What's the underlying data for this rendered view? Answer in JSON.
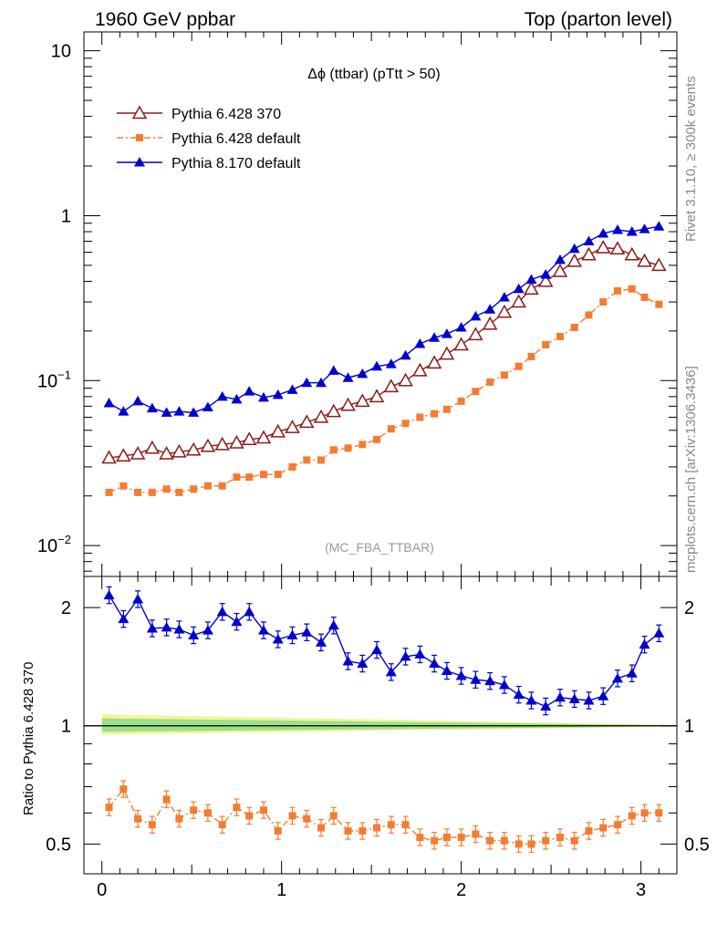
{
  "header": {
    "left": "1960 GeV ppbar",
    "right": "Top (parton level)"
  },
  "side_labels": {
    "rivet": "Rivet 3.1.10, ≥ 300k events",
    "mcplots": "mcplots.cern.ch [arXiv:1306.3436]"
  },
  "main_panel": {
    "title": "Δϕ (ttbar) (pTtt > 50)",
    "watermark": "(MC_FBA_TTBAR)",
    "y_ticks": [
      {
        "value": 10,
        "base": "10",
        "exp": ""
      },
      {
        "value": 1,
        "base": "1",
        "exp": ""
      },
      {
        "value": 0.1,
        "base": "10",
        "exp": "−1"
      },
      {
        "value": 0.01,
        "base": "10",
        "exp": "−2"
      }
    ]
  },
  "ratio_panel": {
    "ylabel": "Ratio to Pythia 6.428 370",
    "y_ticks": [
      {
        "value": 2,
        "label": "2"
      },
      {
        "value": 1,
        "label": "1"
      },
      {
        "value": 0.5,
        "label": "0.5"
      }
    ],
    "x_ticks": [
      {
        "value": 0,
        "label": "0"
      },
      {
        "value": 1,
        "label": "1"
      },
      {
        "value": 2,
        "label": "2"
      },
      {
        "value": 3,
        "label": "3"
      }
    ]
  },
  "chart_data": {
    "type": "line",
    "x_axis": {
      "label": "",
      "range": [
        -0.1,
        3.2
      ]
    },
    "main": {
      "y_scale": "log",
      "ylim": [
        0.0065,
        13
      ]
    },
    "ratio": {
      "y_scale": "log",
      "ylim": [
        0.42,
        2.4
      ],
      "reference": 1.0
    },
    "x": [
      0.04,
      0.12,
      0.2,
      0.28,
      0.36,
      0.43,
      0.51,
      0.59,
      0.67,
      0.75,
      0.82,
      0.9,
      0.98,
      1.06,
      1.14,
      1.22,
      1.29,
      1.37,
      1.45,
      1.53,
      1.61,
      1.69,
      1.77,
      1.85,
      1.92,
      2.0,
      2.08,
      2.16,
      2.24,
      2.32,
      2.39,
      2.47,
      2.55,
      2.63,
      2.71,
      2.79,
      2.87,
      2.95,
      3.02,
      3.1
    ],
    "series": [
      {
        "name": "Pythia 6.428 370",
        "color": "#8b1a1a",
        "marker": "open-triangle",
        "line": "solid",
        "values": [
          0.034,
          0.035,
          0.036,
          0.039,
          0.036,
          0.037,
          0.038,
          0.04,
          0.041,
          0.042,
          0.044,
          0.045,
          0.049,
          0.052,
          0.056,
          0.06,
          0.065,
          0.071,
          0.075,
          0.08,
          0.092,
          0.1,
          0.115,
          0.128,
          0.145,
          0.165,
          0.19,
          0.22,
          0.26,
          0.3,
          0.36,
          0.4,
          0.46,
          0.53,
          0.58,
          0.64,
          0.63,
          0.58,
          0.53,
          0.5
        ],
        "ratio_values": [
          1.0,
          1.0,
          1.0,
          1.0,
          1.0,
          1.0,
          1.0,
          1.0,
          1.0,
          1.0,
          1.0,
          1.0,
          1.0,
          1.0,
          1.0,
          1.0,
          1.0,
          1.0,
          1.0,
          1.0,
          1.0,
          1.0,
          1.0,
          1.0,
          1.0,
          1.0,
          1.0,
          1.0,
          1.0,
          1.0,
          1.0,
          1.0,
          1.0,
          1.0,
          1.0,
          1.0,
          1.0,
          1.0,
          1.0,
          1.0
        ]
      },
      {
        "name": "Pythia 6.428 default",
        "color": "#f47c30",
        "marker": "filled-square",
        "line": "dash-dot",
        "values": [
          0.021,
          0.023,
          0.021,
          0.021,
          0.022,
          0.021,
          0.022,
          0.023,
          0.023,
          0.026,
          0.026,
          0.027,
          0.027,
          0.03,
          0.033,
          0.033,
          0.038,
          0.039,
          0.041,
          0.044,
          0.051,
          0.055,
          0.06,
          0.063,
          0.067,
          0.075,
          0.086,
          0.098,
          0.108,
          0.122,
          0.14,
          0.165,
          0.185,
          0.21,
          0.25,
          0.3,
          0.35,
          0.36,
          0.32,
          0.29
        ],
        "ratio_values": [
          0.62,
          0.69,
          0.58,
          0.56,
          0.65,
          0.58,
          0.61,
          0.6,
          0.56,
          0.62,
          0.59,
          0.61,
          0.54,
          0.59,
          0.58,
          0.55,
          0.59,
          0.54,
          0.54,
          0.55,
          0.56,
          0.56,
          0.52,
          0.51,
          0.52,
          0.52,
          0.53,
          0.51,
          0.51,
          0.5,
          0.5,
          0.51,
          0.52,
          0.51,
          0.54,
          0.55,
          0.56,
          0.59,
          0.6,
          0.6
        ]
      },
      {
        "name": "Pythia 8.170 default",
        "color": "#0000cc",
        "marker": "filled-triangle",
        "line": "solid",
        "values": [
          0.073,
          0.065,
          0.075,
          0.068,
          0.064,
          0.065,
          0.064,
          0.069,
          0.08,
          0.077,
          0.086,
          0.079,
          0.082,
          0.088,
          0.097,
          0.097,
          0.115,
          0.104,
          0.11,
          0.122,
          0.126,
          0.142,
          0.167,
          0.182,
          0.192,
          0.21,
          0.245,
          0.27,
          0.32,
          0.36,
          0.41,
          0.44,
          0.54,
          0.63,
          0.7,
          0.78,
          0.82,
          0.8,
          0.83,
          0.86
        ],
        "ratio_values": [
          2.15,
          1.87,
          2.1,
          1.77,
          1.78,
          1.76,
          1.7,
          1.75,
          1.95,
          1.84,
          1.95,
          1.75,
          1.66,
          1.7,
          1.73,
          1.63,
          1.8,
          1.46,
          1.44,
          1.56,
          1.37,
          1.5,
          1.52,
          1.44,
          1.38,
          1.34,
          1.31,
          1.3,
          1.27,
          1.2,
          1.16,
          1.12,
          1.18,
          1.17,
          1.16,
          1.19,
          1.32,
          1.36,
          1.61,
          1.72
        ]
      }
    ]
  }
}
